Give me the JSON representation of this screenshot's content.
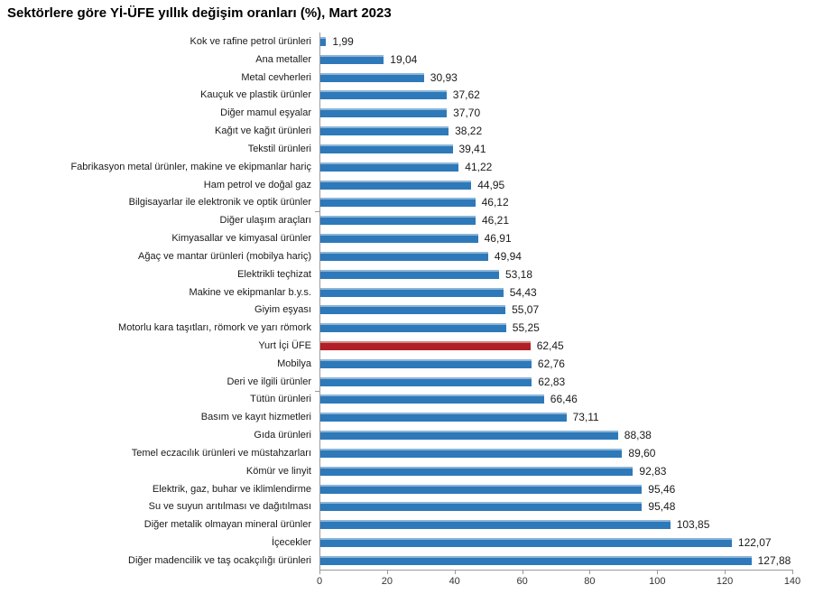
{
  "chart_data": {
    "type": "bar",
    "orientation": "horizontal",
    "title": "Sektörlere göre Yİ-ÜFE yıllık değişim oranları (%), Mart 2023",
    "categories": [
      "Kok ve rafine petrol ürünleri",
      "Ana metaller",
      "Metal cevherleri",
      "Kauçuk ve plastik ürünler",
      "Diğer mamul eşyalar",
      "Kağıt ve kağıt ürünleri",
      "Tekstil ürünleri",
      "Fabrikasyon metal ürünler, makine ve ekipmanlar hariç",
      "Ham petrol ve doğal gaz",
      "Bilgisayarlar ile elektronik ve optik ürünler",
      "Diğer ulaşım araçları",
      "Kimyasallar ve kimyasal ürünler",
      "Ağaç ve mantar ürünleri (mobilya hariç)",
      "Elektrikli teçhizat",
      "Makine ve ekipmanlar b.y.s.",
      "Giyim eşyası",
      "Motorlu kara taşıtları, römork ve yarı römork",
      "Yurt İçi ÜFE",
      "Mobilya",
      "Deri ve ilgili ürünler",
      "Tütün ürünleri",
      "Basım ve kayıt hizmetleri",
      "Gıda ürünleri",
      "Temel eczacılık ürünleri ve müstahzarları",
      "Kömür ve linyit",
      "Elektrik, gaz, buhar ve iklimlendirme",
      "Su ve suyun arıtılması ve dağıtılması",
      "Diğer metalik olmayan mineral ürünler",
      "İçecekler",
      "Diğer madencilik ve taş ocakçılığı ürünleri"
    ],
    "values": [
      1.99,
      19.04,
      30.93,
      37.62,
      37.7,
      38.22,
      39.41,
      41.22,
      44.95,
      46.12,
      46.21,
      46.91,
      49.94,
      53.18,
      54.43,
      55.07,
      55.25,
      62.45,
      62.76,
      62.83,
      66.46,
      73.11,
      88.38,
      89.6,
      92.83,
      95.46,
      95.48,
      103.85,
      122.07,
      127.88
    ],
    "value_labels": [
      "1,99",
      "19,04",
      "30,93",
      "37,62",
      "37,70",
      "38,22",
      "39,41",
      "41,22",
      "44,95",
      "46,12",
      "46,21",
      "46,91",
      "49,94",
      "53,18",
      "54,43",
      "55,07",
      "55,25",
      "62,45",
      "62,76",
      "62,83",
      "66,46",
      "73,11",
      "88,38",
      "89,60",
      "92,83",
      "95,46",
      "95,48",
      "103,85",
      "122,07",
      "127,88"
    ],
    "highlight_category": "Yurt İçi ÜFE",
    "highlight_index": 17,
    "bar_color": "#2e79b9",
    "highlight_color": "#b02026",
    "axis_color": "#9a9a9a",
    "xlabel": "",
    "ylabel": "",
    "xlim": [
      0,
      140
    ],
    "x_ticks": [
      0,
      20,
      40,
      60,
      80,
      100,
      120,
      140
    ],
    "x_tick_labels": [
      "0",
      "20",
      "40",
      "60",
      "80",
      "100",
      "120",
      "140"
    ],
    "grid": false,
    "legend": "none"
  }
}
